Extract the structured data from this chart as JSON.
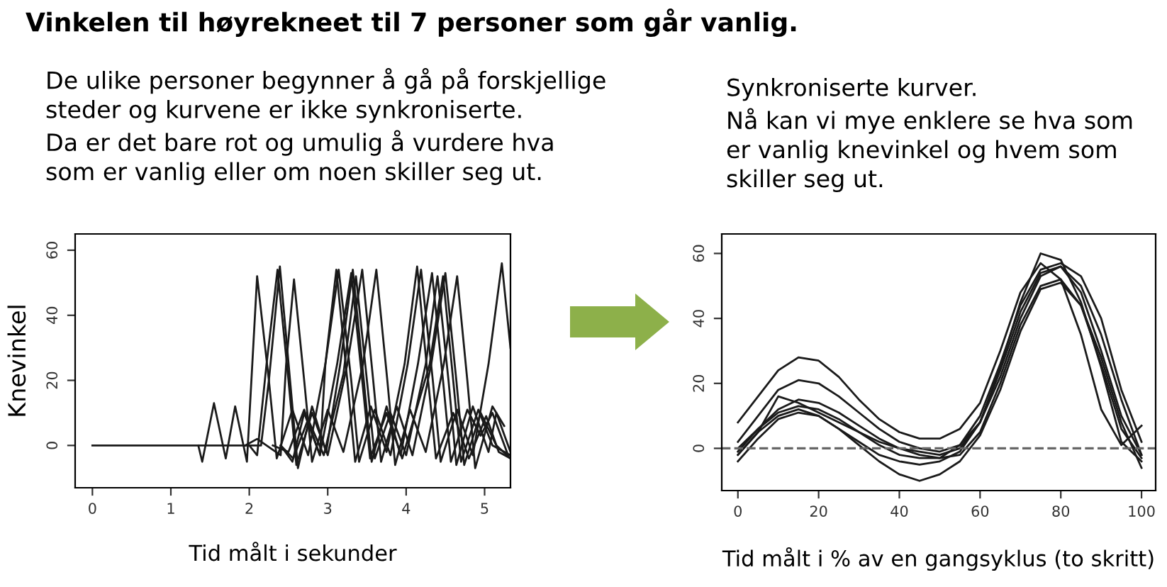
{
  "chart_data": [
    {
      "type": "line",
      "title": "Vinkelen til høyrekneet til 7 personer som går vanlig.",
      "subtitle": "De ulike personer begynner å gå på forskjellige\nsteder og kurvene er ikke synkroniserte.\nDa er det bare rot og umulig å vurdere hva\nsom er vanlig eller om noen skiller seg ut.",
      "xlabel": "Tid målt i sekunder",
      "ylabel": "Knevinkel",
      "xlim": [
        -0.22,
        5.33
      ],
      "ylim": [
        -13,
        65
      ],
      "xticks": [
        0,
        1,
        2,
        3,
        4,
        5
      ],
      "yticks": [
        0,
        20,
        40,
        60
      ],
      "line_style": "solid",
      "marker": "none",
      "series": [
        {
          "color": "#1a1a1a",
          "x": [
            1.35,
            1.4,
            1.55,
            1.7,
            1.82,
            1.97,
            2.1,
            2.25,
            2.35,
            2.55,
            2.75,
            2.97,
            3.14,
            3.3,
            3.4,
            3.6,
            3.8,
            4.02,
            4.19,
            4.34,
            4.44,
            4.65,
            4.85,
            5.05,
            5.22,
            5.33
          ],
          "values": [
            0,
            -5,
            13,
            -4,
            12,
            -5,
            52,
            20,
            -4,
            11,
            -3,
            25,
            54,
            20,
            -5,
            11,
            -3,
            25,
            54,
            20,
            -5,
            11,
            -3,
            25,
            56,
            30
          ]
        },
        {
          "color": "#1a1a1a",
          "x": [
            2.0,
            2.1,
            2.22,
            2.36,
            2.5,
            2.6,
            2.8,
            3.0,
            3.25,
            3.44,
            3.58,
            3.68,
            3.88,
            4.08,
            4.32,
            4.5,
            4.64,
            4.74,
            4.95,
            5.15,
            5.33
          ],
          "values": [
            0,
            -3,
            25,
            54,
            20,
            -6,
            10,
            -3,
            25,
            54,
            20,
            -5,
            12,
            -3,
            25,
            53,
            20,
            -6,
            10,
            0,
            -4
          ]
        },
        {
          "color": "#1a1a1a",
          "x": [
            0,
            2.15,
            2.25,
            2.39,
            2.52,
            2.62,
            2.8,
            2.98,
            3.16,
            3.32,
            3.46,
            3.56,
            3.75,
            3.93,
            4.15,
            4.33,
            4.47,
            4.57,
            4.78,
            4.95,
            5.1,
            5.3
          ],
          "values": [
            0,
            0,
            20,
            55,
            20,
            -7,
            12,
            -2,
            25,
            54,
            20,
            -5,
            12,
            -3,
            25,
            53,
            20,
            -5,
            11,
            3,
            10,
            -3
          ]
        },
        {
          "color": "#1a1a1a",
          "x": [
            1.95,
            2.1,
            2.4,
            2.47,
            2.57,
            2.7,
            2.8,
            3.0,
            3.2,
            3.45,
            3.62,
            3.76,
            3.86,
            4.05,
            4.25,
            4.48,
            4.65,
            4.78,
            4.88,
            5.1,
            5.25
          ],
          "values": [
            0,
            2,
            -3,
            25,
            51,
            20,
            -5,
            11,
            -2,
            25,
            54,
            20,
            -6,
            11,
            -2,
            25,
            52,
            20,
            -7,
            12,
            6
          ]
        },
        {
          "color": "#1a1a1a",
          "x": [
            2.4,
            2.55,
            2.7,
            2.9,
            2.97,
            3.11,
            3.25,
            3.35,
            3.55,
            3.75,
            3.98,
            4.14,
            4.28,
            4.38,
            4.6,
            4.8,
            5.02,
            5.18,
            5.33
          ],
          "values": [
            0,
            -5,
            10,
            -3,
            25,
            54,
            20,
            -5,
            12,
            -2,
            25,
            55,
            20,
            -4,
            10,
            -4,
            9,
            -2,
            -4
          ]
        },
        {
          "color": "#1a1a1a",
          "x": [
            2.3,
            2.5,
            2.7,
            2.9,
            3.12,
            3.3,
            3.44,
            3.54,
            3.75,
            3.95,
            4.3,
            4.47,
            4.6,
            4.7,
            4.92,
            5.1,
            5.33
          ],
          "values": [
            0,
            -2,
            11,
            -3,
            25,
            53,
            20,
            -4,
            10,
            -4,
            25,
            52,
            20,
            -5,
            11,
            0,
            -3
          ]
        },
        {
          "color": "#1a1a1a",
          "x": [
            2.4,
            2.56,
            2.75,
            2.95,
            3.2,
            3.36,
            3.5,
            3.6,
            3.8,
            4.0,
            4.25,
            4.4,
            4.54,
            4.64,
            4.85,
            5.05,
            5.15,
            5.33
          ],
          "values": [
            0,
            -4,
            8,
            -3,
            22,
            52,
            20,
            -4,
            10,
            -3,
            25,
            52,
            20,
            -6,
            12,
            -2,
            10,
            -2
          ]
        }
      ]
    },
    {
      "type": "line",
      "subtitle": "Synkroniserte kurver.\nNå kan vi mye enklere se hva som\ner vanlig knevinkel og hvem som\nskiller seg ut.",
      "xlabel": "Tid målt i % av en gangsyklus (to skritt)",
      "xlim": [
        -4,
        103.5
      ],
      "ylim": [
        -13,
        66
      ],
      "xticks": [
        0,
        20,
        40,
        60,
        80,
        100
      ],
      "yticks": [
        0,
        20,
        40,
        60
      ],
      "line_style": "solid",
      "marker": "none",
      "x": [
        0,
        5,
        10,
        15,
        20,
        25,
        30,
        35,
        40,
        45,
        50,
        55,
        60,
        65,
        70,
        75,
        80,
        85,
        90,
        95,
        100
      ],
      "ref_lines": [
        {
          "axis": "y",
          "value": 0,
          "color": "#666666",
          "line_style": "dashed"
        }
      ],
      "series": [
        {
          "color": "#1a1a1a",
          "values": [
            8,
            16,
            24,
            28,
            27,
            22,
            15,
            9,
            5,
            3,
            3,
            6,
            14,
            30,
            48,
            57,
            52,
            35,
            12,
            1,
            7
          ]
        },
        {
          "color": "#1a1a1a",
          "values": [
            2,
            10,
            18,
            21,
            20,
            16,
            11,
            6,
            2,
            0,
            -1,
            1,
            8,
            22,
            40,
            53,
            56,
            48,
            30,
            10,
            -2
          ]
        },
        {
          "color": "#1a1a1a",
          "values": [
            -2,
            5,
            16,
            14,
            11,
            8,
            5,
            2,
            0,
            -1,
            -2,
            0,
            8,
            25,
            45,
            60,
            58,
            45,
            25,
            2,
            -4
          ]
        },
        {
          "color": "#1a1a1a",
          "values": [
            -1,
            6,
            12,
            15,
            14,
            11,
            7,
            3,
            0,
            -2,
            -3,
            -2,
            5,
            20,
            38,
            50,
            52,
            44,
            26,
            6,
            -3
          ]
        },
        {
          "color": "#1a1a1a",
          "values": [
            -4,
            3,
            9,
            11,
            10,
            6,
            1,
            -4,
            -8,
            -10,
            -8,
            -4,
            4,
            18,
            36,
            49,
            51,
            44,
            28,
            8,
            -6
          ]
        },
        {
          "color": "#1a1a1a",
          "values": [
            -2,
            5,
            10,
            12,
            10,
            6,
            2,
            -2,
            -4,
            -5,
            -4,
            -1,
            8,
            24,
            42,
            54,
            56,
            50,
            35,
            15,
            -2
          ]
        },
        {
          "color": "#1a1a1a",
          "values": [
            0,
            6,
            11,
            13,
            12,
            9,
            5,
            1,
            -2,
            -3,
            -3,
            1,
            10,
            26,
            44,
            55,
            57,
            53,
            40,
            18,
            2
          ]
        }
      ]
    }
  ]
}
